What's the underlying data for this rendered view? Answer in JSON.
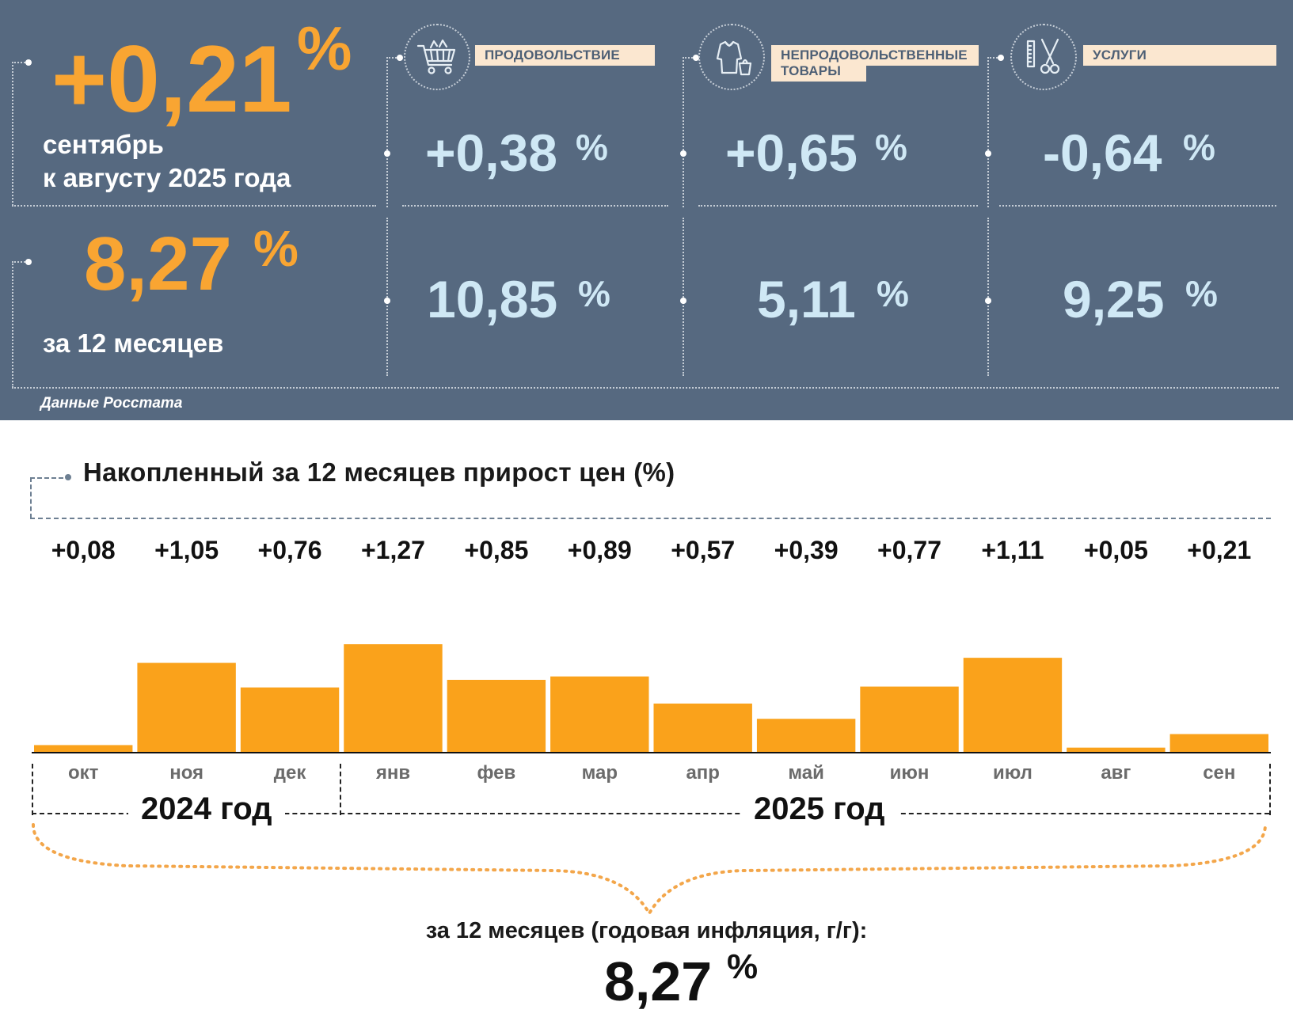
{
  "summary": {
    "monthly_value": "+0,21",
    "monthly_pct": "%",
    "monthly_line1": "сентябрь",
    "monthly_line2": "к августу 2025 года",
    "annual_value": "8,27",
    "annual_pct": "%",
    "annual_caption": "за 12 месяцев",
    "source": "Данные Росстата"
  },
  "categories": [
    {
      "label": "ПРОДОВОЛЬСТВИЕ",
      "label_line2": "",
      "icon": "shopping-cart-icon",
      "monthly": "+0,38",
      "annual": "10,85",
      "pct": "%"
    },
    {
      "label": "НЕПРОДОВОЛЬСТВЕННЫЕ",
      "label_line2": "ТОВАРЫ",
      "icon": "clothing-bag-icon",
      "monthly": "+0,65",
      "annual": "5,11",
      "pct": "%"
    },
    {
      "label": "УСЛУГИ",
      "label_line2": "",
      "icon": "comb-scissors-icon",
      "monthly": "-0,64",
      "annual": "9,25",
      "pct": "%"
    }
  ],
  "colors": {
    "panel_bg": "#566980",
    "accent_orange": "#f9a532",
    "light_blue": "#cfe8f5",
    "label_bg": "#fbe7d0",
    "bar": "#faa21b"
  },
  "chart_data": {
    "type": "bar",
    "title": "Накопленный за 12 месяцев прирост цен (%)",
    "categories": [
      "окт",
      "ноя",
      "дек",
      "янв",
      "фев",
      "мар",
      "апр",
      "май",
      "июн",
      "июл",
      "авг",
      "сен"
    ],
    "values": [
      0.08,
      1.05,
      0.76,
      1.27,
      0.85,
      0.89,
      0.57,
      0.39,
      0.77,
      1.11,
      0.05,
      0.21
    ],
    "value_labels": [
      "+0,08",
      "+1,05",
      "+0,76",
      "+1,27",
      "+0,85",
      "+0,89",
      "+0,57",
      "+0,39",
      "+0,77",
      "+1,11",
      "+0,05",
      "+0,21"
    ],
    "year_groups": [
      {
        "label": "2024 год",
        "months": 3
      },
      {
        "label": "2025 год",
        "months": 9
      }
    ],
    "ylim": [
      0,
      1.3
    ],
    "grid": false,
    "total_caption": "за 12 месяцев (годовая инфляция, г/г):",
    "total_value": "8,27",
    "total_pct": "%"
  }
}
